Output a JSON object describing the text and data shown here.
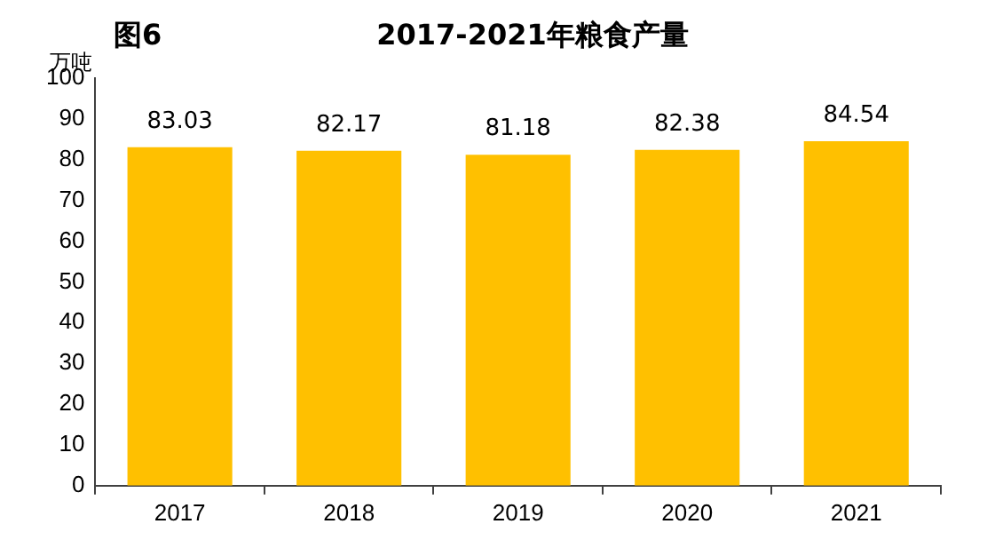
{
  "chart_data": {
    "type": "bar",
    "title": "2017-2021年粮食产量",
    "ylabel": "万吨",
    "annotations": [
      "图6"
    ],
    "categories": [
      "2017",
      "2018",
      "2019",
      "2020",
      "2021"
    ],
    "values": [
      83.03,
      82.17,
      81.18,
      82.38,
      84.54
    ],
    "color": "#ffc000",
    "ylim": [
      0,
      100
    ],
    "yticks": [
      0,
      10,
      20,
      30,
      40,
      50,
      60,
      70,
      80,
      90,
      100
    ],
    "grid": false,
    "data_labels": true,
    "legend": false
  }
}
